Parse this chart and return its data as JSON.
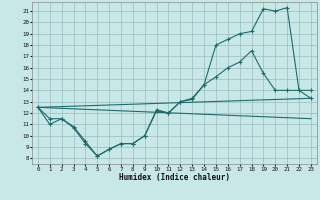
{
  "xlabel": "Humidex (Indice chaleur)",
  "xlim": [
    -0.5,
    23.5
  ],
  "ylim": [
    7.5,
    21.8
  ],
  "yticks": [
    8,
    9,
    10,
    11,
    12,
    13,
    14,
    15,
    16,
    17,
    18,
    19,
    20,
    21
  ],
  "xticks": [
    0,
    1,
    2,
    3,
    4,
    5,
    6,
    7,
    8,
    9,
    10,
    11,
    12,
    13,
    14,
    15,
    16,
    17,
    18,
    19,
    20,
    21,
    22,
    23
  ],
  "bg_color": "#c8e8e8",
  "grid_color": "#9abcbc",
  "line_color": "#1e6b6b",
  "line1_y": [
    12.5,
    11.0,
    11.5,
    10.7,
    9.3,
    8.2,
    8.8,
    9.3,
    9.3,
    10.0,
    12.3,
    12.0,
    13.0,
    13.2,
    14.5,
    18.0,
    18.5,
    19.0,
    19.2,
    21.2,
    21.0,
    21.3,
    14.0,
    14.0
  ],
  "line2_y": [
    12.5,
    11.5,
    11.5,
    10.8,
    9.5,
    8.2,
    8.8,
    9.3,
    9.3,
    10.0,
    12.2,
    12.0,
    13.0,
    13.3,
    14.5,
    15.2,
    16.0,
    16.5,
    17.5,
    15.5,
    14.0,
    14.0,
    14.0,
    13.3
  ],
  "line3_y0": 12.5,
  "line3_y1": 13.3,
  "line4_y0": 12.5,
  "line4_y1": 11.5
}
